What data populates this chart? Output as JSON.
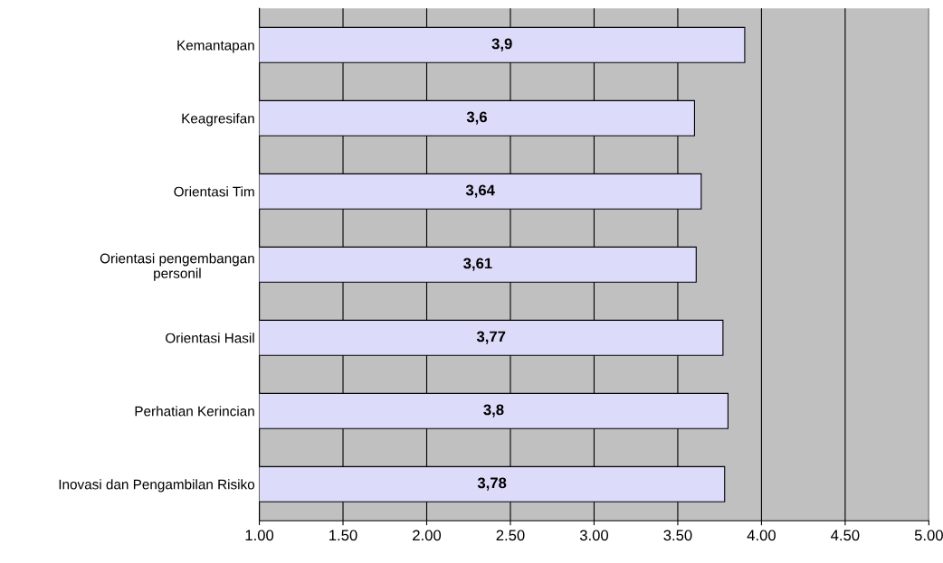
{
  "chart_data": {
    "type": "bar",
    "orientation": "horizontal",
    "categories": [
      "Kemantapan",
      "Keagresifan",
      "Orientasi Tim",
      "Orientasi pengembangan\npersonil",
      "Orientasi Hasil",
      "Perhatian Kerincian",
      "Inovasi dan Pengambilan Risiko"
    ],
    "values": [
      3.9,
      3.6,
      3.64,
      3.61,
      3.77,
      3.8,
      3.78
    ],
    "color": "#dcdcfa",
    "xlim": [
      1,
      5
    ],
    "xticks": [
      {
        "value": 1,
        "label": "1.00"
      },
      {
        "value": 1.5,
        "label": "1.50"
      },
      {
        "value": 2,
        "label": "2.00"
      },
      {
        "value": 2.5,
        "label": "2.50"
      },
      {
        "value": 3,
        "label": "3.00"
      },
      {
        "value": 3.5,
        "label": "3.50"
      },
      {
        "value": 4,
        "label": "4.00"
      },
      {
        "value": 4.5,
        "label": "4.50"
      },
      {
        "value": 5,
        "label": "5.00"
      }
    ],
    "value_labels": [
      "3,9",
      "3,6",
      "3,64",
      "3,61",
      "3,77",
      "3,8",
      "3,78"
    ],
    "grid": "x",
    "legend": false
  }
}
